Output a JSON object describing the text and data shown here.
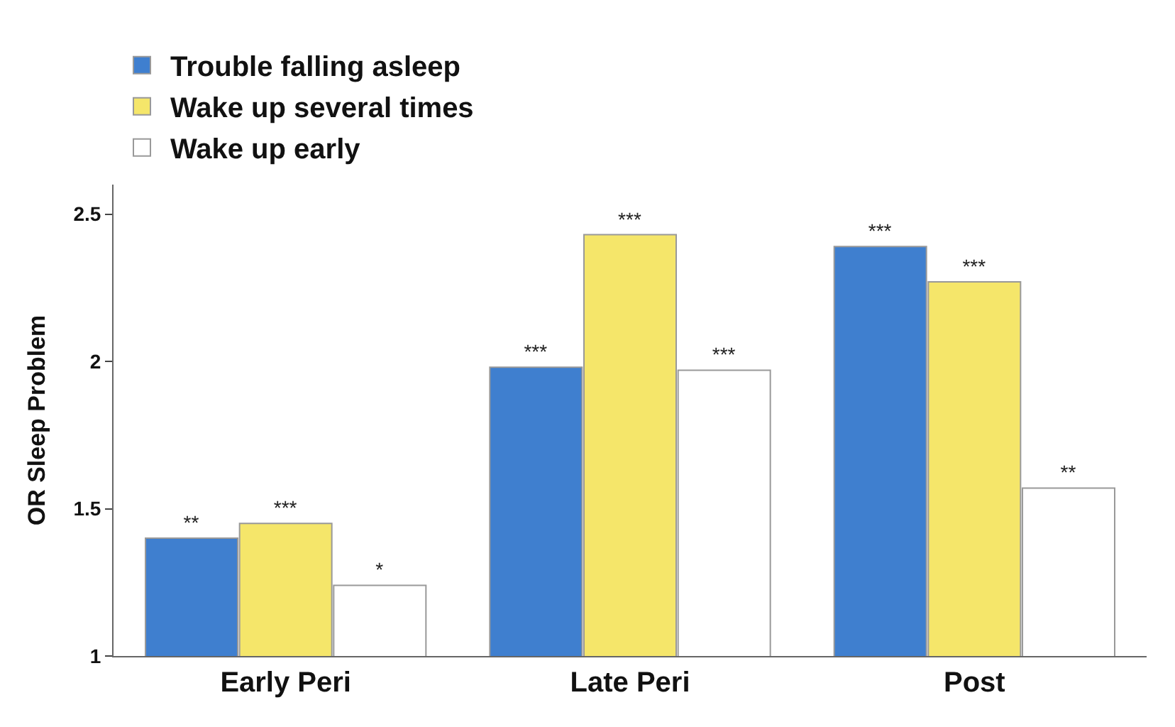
{
  "chart_data": {
    "type": "bar",
    "ylabel": "OR Sleep Problem",
    "categories": [
      "Early Peri",
      "Late Peri",
      "Post"
    ],
    "series": [
      {
        "name": "Trouble falling asleep",
        "color": "#3f7fcf",
        "values": [
          1.4,
          1.98,
          2.39
        ],
        "value_labels": [
          "**",
          "***",
          "***"
        ]
      },
      {
        "name": "Wake up several times",
        "color": "#f5e66a",
        "values": [
          1.45,
          2.43,
          2.27
        ],
        "value_labels": [
          "***",
          "***",
          "***"
        ]
      },
      {
        "name": "Wake up early",
        "color": "#ffffff",
        "values": [
          1.24,
          1.97,
          1.57
        ],
        "value_labels": [
          "*",
          "***",
          "**"
        ]
      }
    ],
    "ylim": [
      1,
      2.6
    ],
    "yticks": [
      1,
      1.5,
      2,
      2.5
    ],
    "legend": "top left"
  }
}
